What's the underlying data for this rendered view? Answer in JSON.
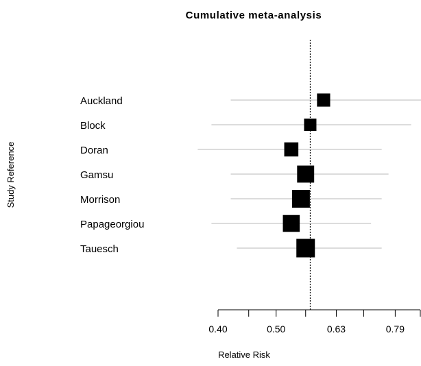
{
  "chart_data": {
    "type": "forest",
    "title": "Cumulative meta-analysis",
    "xlabel": "Relative Risk",
    "ylabel": "Study Reference",
    "scale": "log",
    "xlim": [
      0.4,
      0.87
    ],
    "xticks": [
      0.4,
      0.45,
      0.5,
      0.56,
      0.63,
      0.7,
      0.79,
      0.87
    ],
    "xtick_labels": [
      "0.40",
      "",
      "0.50",
      "",
      "0.63",
      "",
      "0.79",
      ""
    ],
    "reference_line": 0.57,
    "studies": [
      {
        "label": "Auckland",
        "estimate": 0.6,
        "lower": 0.42,
        "upper": 0.88
      },
      {
        "label": "Block",
        "estimate": 0.57,
        "lower": 0.39,
        "upper": 0.84
      },
      {
        "label": "Doran",
        "estimate": 0.53,
        "lower": 0.37,
        "upper": 0.75
      },
      {
        "label": "Gamsu",
        "estimate": 0.56,
        "lower": 0.42,
        "upper": 0.77
      },
      {
        "label": "Morrison",
        "estimate": 0.55,
        "lower": 0.42,
        "upper": 0.75
      },
      {
        "label": "Papageorgiou",
        "estimate": 0.53,
        "lower": 0.39,
        "upper": 0.72
      },
      {
        "label": "Tauesch",
        "estimate": 0.56,
        "lower": 0.43,
        "upper": 0.75
      }
    ]
  }
}
